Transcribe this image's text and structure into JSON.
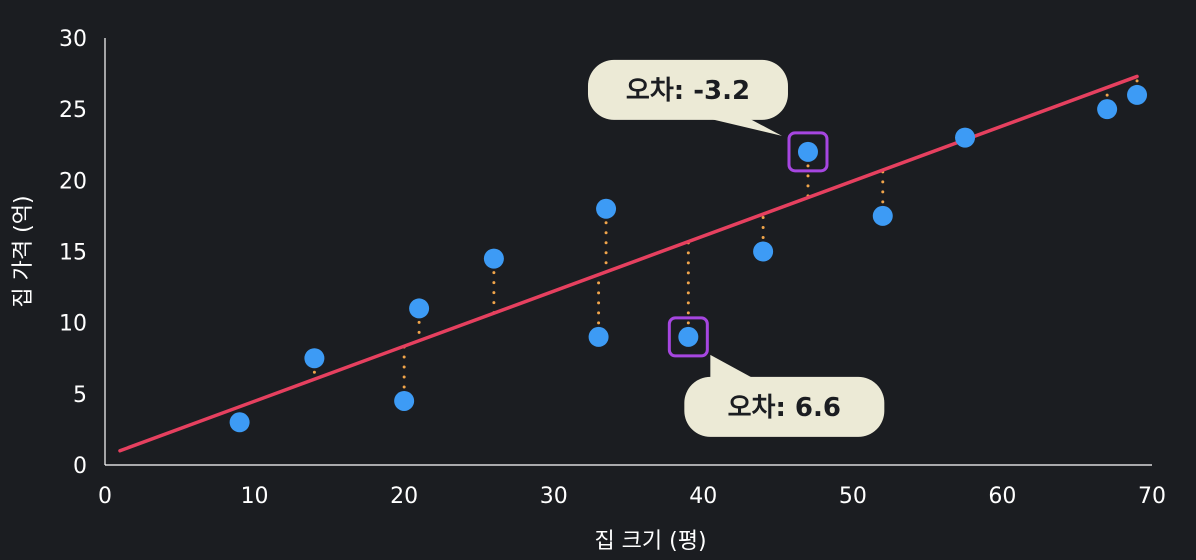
{
  "chart_data": {
    "type": "scatter",
    "title": "",
    "xlabel": "집 크기 (평)",
    "ylabel": "집 가격 (억)",
    "xlim": [
      0,
      70
    ],
    "ylim": [
      0,
      30
    ],
    "xticks": [
      0,
      10,
      20,
      30,
      40,
      50,
      60,
      70
    ],
    "yticks": [
      0,
      5,
      10,
      15,
      20,
      25,
      30
    ],
    "grid": false,
    "points": [
      {
        "x": 9,
        "y": 3
      },
      {
        "x": 14,
        "y": 7.5
      },
      {
        "x": 20,
        "y": 4.5
      },
      {
        "x": 21,
        "y": 11
      },
      {
        "x": 26,
        "y": 14.5
      },
      {
        "x": 33,
        "y": 9
      },
      {
        "x": 33.5,
        "y": 18
      },
      {
        "x": 39,
        "y": 9
      },
      {
        "x": 44,
        "y": 15
      },
      {
        "x": 47,
        "y": 22
      },
      {
        "x": 52,
        "y": 17.5
      },
      {
        "x": 57.5,
        "y": 23
      },
      {
        "x": 67,
        "y": 25
      },
      {
        "x": 69,
        "y": 26
      }
    ],
    "regression_line": {
      "x": [
        1,
        69
      ],
      "y": [
        1,
        27.3
      ]
    },
    "highlighted": [
      {
        "x": 47,
        "y": 22,
        "label": "오차: -3.2"
      },
      {
        "x": 39,
        "y": 9,
        "label": "오차: 6.6"
      }
    ],
    "colors": {
      "point": "#3d9bf5",
      "line": "#e6405f",
      "residual": "#f0a44a",
      "highlight": "#a646e0",
      "callout_bg": "#ecead6",
      "axis": "#ffffff",
      "background": "#1b1d21"
    }
  }
}
